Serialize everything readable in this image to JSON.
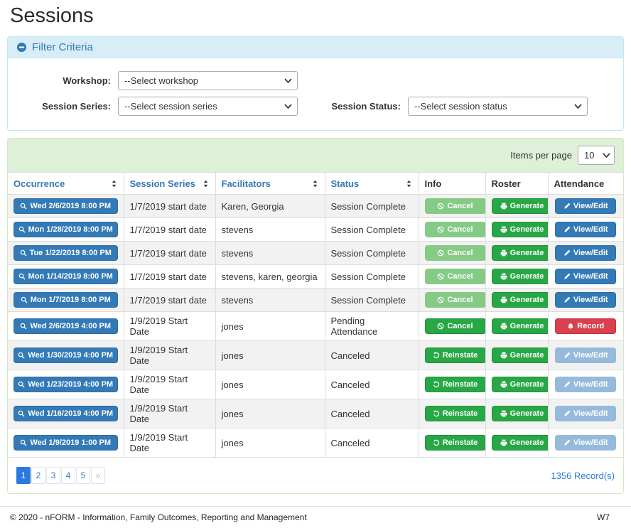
{
  "page": {
    "title": "Sessions"
  },
  "filter": {
    "header": "Filter Criteria",
    "fields": [
      {
        "label": "Workshop:",
        "value": "--Select workshop"
      },
      {
        "label": "Session Series:",
        "value": "--Select session series"
      },
      {
        "label": "Session Status:",
        "value": "--Select session status"
      }
    ]
  },
  "table": {
    "items_per_page_label": "Items per page",
    "items_per_page_value": "10",
    "columns": [
      {
        "label": "Occurrence",
        "sortable": true
      },
      {
        "label": "Session Series",
        "sortable": true
      },
      {
        "label": "Facilitators",
        "sortable": true
      },
      {
        "label": "Status",
        "sortable": true
      },
      {
        "label": "Info",
        "sortable": false
      },
      {
        "label": "Roster",
        "sortable": false
      },
      {
        "label": "Attendance",
        "sortable": false
      }
    ],
    "rows": [
      {
        "occurrence": "Wed 2/6/2019 8:00 PM",
        "session_series": "1/7/2019 start date",
        "facilitators": "Karen, Georgia",
        "status": "Session Complete",
        "info": {
          "label": "Cancel",
          "icon": "ban",
          "style": "success",
          "disabled": true
        },
        "roster": {
          "label": "Generate",
          "icon": "printer",
          "style": "success",
          "disabled": false
        },
        "attendance": {
          "label": "View/Edit",
          "icon": "pencil",
          "style": "primary",
          "disabled": false
        }
      },
      {
        "occurrence": "Mon 1/28/2019 8:00 PM",
        "session_series": "1/7/2019 start date",
        "facilitators": "stevens",
        "status": "Session Complete",
        "info": {
          "label": "Cancel",
          "icon": "ban",
          "style": "success",
          "disabled": true
        },
        "roster": {
          "label": "Generate",
          "icon": "printer",
          "style": "success",
          "disabled": false
        },
        "attendance": {
          "label": "View/Edit",
          "icon": "pencil",
          "style": "primary",
          "disabled": false
        }
      },
      {
        "occurrence": "Tue 1/22/2019 8:00 PM",
        "session_series": "1/7/2019 start date",
        "facilitators": "stevens",
        "status": "Session Complete",
        "info": {
          "label": "Cancel",
          "icon": "ban",
          "style": "success",
          "disabled": true
        },
        "roster": {
          "label": "Generate",
          "icon": "printer",
          "style": "success",
          "disabled": false
        },
        "attendance": {
          "label": "View/Edit",
          "icon": "pencil",
          "style": "primary",
          "disabled": false
        }
      },
      {
        "occurrence": "Mon 1/14/2019 8:00 PM",
        "session_series": "1/7/2019 start date",
        "facilitators": "stevens, karen, georgia",
        "status": "Session Complete",
        "info": {
          "label": "Cancel",
          "icon": "ban",
          "style": "success",
          "disabled": true
        },
        "roster": {
          "label": "Generate",
          "icon": "printer",
          "style": "success",
          "disabled": false
        },
        "attendance": {
          "label": "View/Edit",
          "icon": "pencil",
          "style": "primary",
          "disabled": false
        }
      },
      {
        "occurrence": "Mon 1/7/2019 8:00 PM",
        "session_series": "1/7/2019 start date",
        "facilitators": "stevens",
        "status": "Session Complete",
        "info": {
          "label": "Cancel",
          "icon": "ban",
          "style": "success",
          "disabled": true
        },
        "roster": {
          "label": "Generate",
          "icon": "printer",
          "style": "success",
          "disabled": false
        },
        "attendance": {
          "label": "View/Edit",
          "icon": "pencil",
          "style": "primary",
          "disabled": false
        }
      },
      {
        "occurrence": "Wed 2/6/2019 4:00 PM",
        "session_series": "1/9/2019 Start Date",
        "facilitators": "jones",
        "status": "Pending Attendance",
        "info": {
          "label": "Cancel",
          "icon": "ban",
          "style": "success",
          "disabled": false
        },
        "roster": {
          "label": "Generate",
          "icon": "printer",
          "style": "success",
          "disabled": false
        },
        "attendance": {
          "label": "Record",
          "icon": "bell",
          "style": "danger",
          "disabled": false
        }
      },
      {
        "occurrence": "Wed 1/30/2019 4:00 PM",
        "session_series": "1/9/2019 Start Date",
        "facilitators": "jones",
        "status": "Canceled",
        "info": {
          "label": "Reinstate",
          "icon": "reinstate",
          "style": "success",
          "disabled": false
        },
        "roster": {
          "label": "Generate",
          "icon": "printer",
          "style": "success",
          "disabled": false
        },
        "attendance": {
          "label": "View/Edit",
          "icon": "pencil",
          "style": "primary",
          "disabled": true
        }
      },
      {
        "occurrence": "Wed 1/23/2019 4:00 PM",
        "session_series": "1/9/2019 Start Date",
        "facilitators": "jones",
        "status": "Canceled",
        "info": {
          "label": "Reinstate",
          "icon": "reinstate",
          "style": "success",
          "disabled": false
        },
        "roster": {
          "label": "Generate",
          "icon": "printer",
          "style": "success",
          "disabled": false
        },
        "attendance": {
          "label": "View/Edit",
          "icon": "pencil",
          "style": "primary",
          "disabled": true
        }
      },
      {
        "occurrence": "Wed 1/16/2019 4:00 PM",
        "session_series": "1/9/2019 Start Date",
        "facilitators": "jones",
        "status": "Canceled",
        "info": {
          "label": "Reinstate",
          "icon": "reinstate",
          "style": "success",
          "disabled": false
        },
        "roster": {
          "label": "Generate",
          "icon": "printer",
          "style": "success",
          "disabled": false
        },
        "attendance": {
          "label": "View/Edit",
          "icon": "pencil",
          "style": "primary",
          "disabled": true
        }
      },
      {
        "occurrence": "Wed 1/9/2019 1:00 PM",
        "session_series": "1/9/2019 Start Date",
        "facilitators": "jones",
        "status": "Canceled",
        "info": {
          "label": "Reinstate",
          "icon": "reinstate",
          "style": "success",
          "disabled": false
        },
        "roster": {
          "label": "Generate",
          "icon": "printer",
          "style": "success",
          "disabled": false
        },
        "attendance": {
          "label": "View/Edit",
          "icon": "pencil",
          "style": "primary",
          "disabled": true
        }
      }
    ],
    "pagination": {
      "pages": [
        "1",
        "2",
        "3",
        "4",
        "5",
        "»"
      ],
      "active": "1",
      "records": "1356 Record(s)"
    }
  },
  "footer": {
    "copyright": "© 2020 - nFORM - Information, Family Outcomes, Reporting and Management",
    "version": "W7"
  },
  "colors": {
    "accent_blue": "#337ab7",
    "success_green": "#28a745",
    "disabled_green": "#85ca85",
    "disabled_blue": "#95badb",
    "danger_red": "#d9414e",
    "filter_header_bg": "#d9edf7",
    "table_band_bg": "#dff0d8",
    "pagination_blue": "#2a7ade"
  }
}
